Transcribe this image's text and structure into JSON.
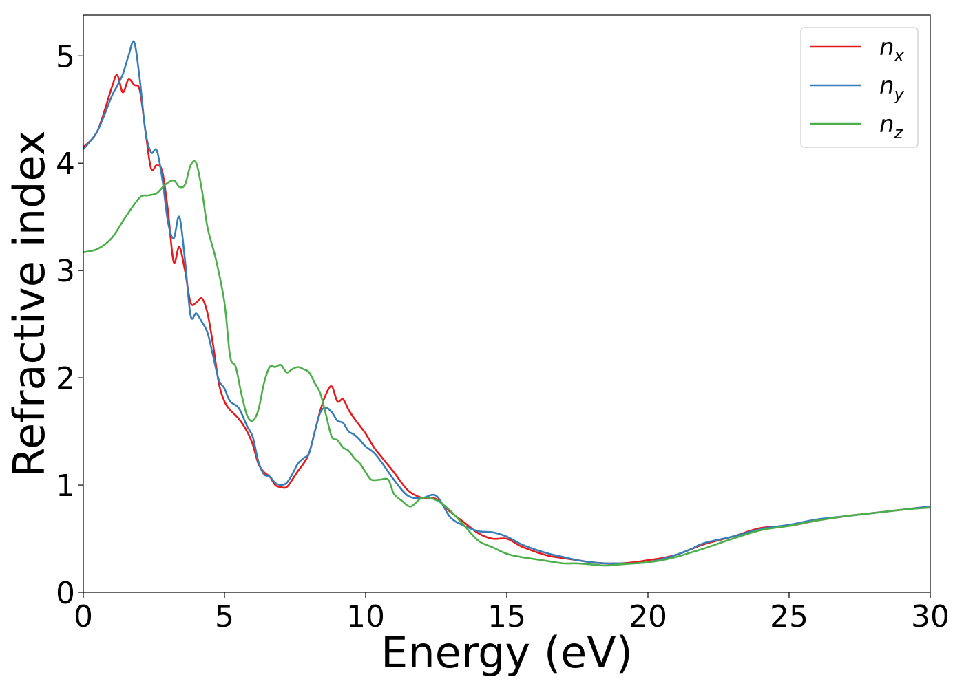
{
  "chart_data": {
    "type": "line",
    "xlabel": "Energy (eV)",
    "ylabel": "Refractive index",
    "xlim": [
      0,
      30
    ],
    "ylim": [
      0,
      5.38
    ],
    "xticks": [
      0,
      5,
      10,
      15,
      20,
      25,
      30
    ],
    "yticks": [
      0,
      1,
      2,
      3,
      4,
      5
    ],
    "grid": false,
    "legend_position": "top-right",
    "series": [
      {
        "name": "n",
        "subscript": "x",
        "color": "#e41a1c",
        "x": [
          0,
          0.5,
          1.0,
          1.2,
          1.4,
          1.6,
          1.8,
          2.0,
          2.2,
          2.4,
          2.6,
          2.8,
          3.0,
          3.2,
          3.4,
          3.6,
          3.8,
          4.0,
          4.2,
          4.4,
          4.6,
          4.8,
          5.0,
          5.2,
          5.5,
          5.8,
          6.0,
          6.2,
          6.4,
          6.6,
          6.8,
          7.0,
          7.2,
          7.4,
          7.6,
          7.8,
          8.0,
          8.2,
          8.4,
          8.6,
          8.8,
          9.0,
          9.2,
          9.4,
          9.6,
          9.8,
          10.0,
          10.3,
          10.6,
          11.0,
          11.5,
          12.0,
          12.5,
          13.0,
          13.5,
          14.0,
          14.5,
          15.0,
          15.5,
          16.0,
          16.5,
          17.0,
          17.5,
          18.0,
          18.5,
          19.0,
          19.5,
          20.0,
          20.5,
          21.0,
          21.5,
          22.0,
          23.0,
          24.0,
          25.0,
          26.0,
          27.0,
          28.0,
          29.0,
          30.0
        ],
        "y": [
          4.15,
          4.3,
          4.7,
          4.82,
          4.66,
          4.78,
          4.73,
          4.68,
          4.3,
          3.95,
          3.98,
          3.92,
          3.55,
          3.08,
          3.22,
          3.0,
          2.7,
          2.7,
          2.74,
          2.6,
          2.3,
          1.95,
          1.78,
          1.7,
          1.62,
          1.5,
          1.38,
          1.2,
          1.12,
          1.08,
          1.0,
          0.98,
          0.98,
          1.05,
          1.13,
          1.2,
          1.3,
          1.5,
          1.7,
          1.85,
          1.92,
          1.78,
          1.8,
          1.7,
          1.62,
          1.55,
          1.48,
          1.35,
          1.25,
          1.12,
          0.95,
          0.88,
          0.87,
          0.75,
          0.65,
          0.55,
          0.5,
          0.5,
          0.43,
          0.38,
          0.34,
          0.32,
          0.3,
          0.28,
          0.27,
          0.27,
          0.28,
          0.3,
          0.32,
          0.35,
          0.4,
          0.45,
          0.52,
          0.6,
          0.62,
          0.67,
          0.71,
          0.74,
          0.77,
          0.8
        ]
      },
      {
        "name": "n",
        "subscript": "y",
        "color": "#377eb8",
        "x": [
          0,
          0.5,
          1.0,
          1.2,
          1.4,
          1.6,
          1.8,
          2.0,
          2.2,
          2.4,
          2.6,
          2.8,
          3.0,
          3.2,
          3.4,
          3.6,
          3.8,
          4.0,
          4.2,
          4.4,
          4.6,
          4.8,
          5.0,
          5.2,
          5.5,
          5.8,
          6.0,
          6.2,
          6.4,
          6.6,
          6.8,
          7.0,
          7.2,
          7.4,
          7.6,
          7.8,
          8.0,
          8.2,
          8.4,
          8.6,
          8.8,
          9.0,
          9.2,
          9.4,
          9.6,
          9.8,
          10.0,
          10.3,
          10.6,
          11.0,
          11.5,
          12.0,
          12.5,
          13.0,
          13.5,
          14.0,
          14.5,
          15.0,
          15.5,
          16.0,
          16.5,
          17.0,
          17.5,
          18.0,
          18.5,
          19.0,
          19.5,
          20.0,
          20.5,
          21.0,
          21.5,
          22.0,
          23.0,
          24.0,
          25.0,
          26.0,
          27.0,
          28.0,
          29.0,
          30.0
        ],
        "y": [
          4.13,
          4.3,
          4.62,
          4.72,
          4.83,
          5.0,
          5.13,
          4.78,
          4.3,
          4.1,
          4.12,
          3.85,
          3.45,
          3.3,
          3.5,
          3.1,
          2.58,
          2.6,
          2.52,
          2.42,
          2.2,
          1.98,
          1.9,
          1.78,
          1.72,
          1.55,
          1.45,
          1.22,
          1.1,
          1.08,
          1.02,
          1.0,
          1.02,
          1.1,
          1.2,
          1.25,
          1.3,
          1.5,
          1.68,
          1.72,
          1.68,
          1.6,
          1.58,
          1.5,
          1.47,
          1.42,
          1.36,
          1.3,
          1.2,
          1.05,
          0.9,
          0.88,
          0.9,
          0.7,
          0.62,
          0.57,
          0.56,
          0.52,
          0.45,
          0.4,
          0.36,
          0.33,
          0.3,
          0.28,
          0.27,
          0.27,
          0.27,
          0.28,
          0.31,
          0.35,
          0.4,
          0.46,
          0.52,
          0.59,
          0.63,
          0.68,
          0.71,
          0.74,
          0.77,
          0.8
        ]
      },
      {
        "name": "n",
        "subscript": "z",
        "color": "#4daf4a",
        "x": [
          0,
          0.5,
          1.0,
          1.5,
          2.0,
          2.3,
          2.6,
          2.9,
          3.2,
          3.4,
          3.6,
          3.8,
          4.0,
          4.2,
          4.4,
          4.7,
          5.0,
          5.2,
          5.4,
          5.6,
          5.8,
          6.0,
          6.2,
          6.4,
          6.6,
          6.8,
          7.0,
          7.2,
          7.4,
          7.6,
          7.8,
          8.0,
          8.2,
          8.4,
          8.6,
          8.8,
          9.0,
          9.2,
          9.4,
          9.6,
          9.8,
          10.0,
          10.2,
          10.5,
          10.8,
          11.0,
          11.3,
          11.6,
          12.0,
          12.5,
          13.0,
          13.5,
          14.0,
          14.5,
          15.0,
          15.5,
          16.0,
          16.5,
          17.0,
          17.5,
          18.0,
          18.5,
          19.0,
          19.5,
          20.0,
          20.5,
          21.0,
          21.5,
          22.0,
          23.0,
          24.0,
          25.0,
          26.0,
          27.0,
          28.0,
          29.0,
          30.0
        ],
        "y": [
          3.17,
          3.2,
          3.3,
          3.5,
          3.68,
          3.7,
          3.72,
          3.8,
          3.84,
          3.78,
          3.8,
          3.98,
          4.0,
          3.75,
          3.4,
          3.1,
          2.7,
          2.2,
          2.1,
          1.85,
          1.65,
          1.6,
          1.7,
          1.95,
          2.1,
          2.1,
          2.12,
          2.05,
          2.08,
          2.1,
          2.08,
          2.05,
          1.95,
          1.85,
          1.65,
          1.45,
          1.42,
          1.35,
          1.32,
          1.25,
          1.2,
          1.12,
          1.05,
          1.05,
          1.05,
          0.92,
          0.85,
          0.8,
          0.88,
          0.86,
          0.76,
          0.62,
          0.48,
          0.42,
          0.36,
          0.33,
          0.31,
          0.29,
          0.27,
          0.27,
          0.26,
          0.25,
          0.26,
          0.27,
          0.28,
          0.3,
          0.33,
          0.37,
          0.41,
          0.5,
          0.58,
          0.62,
          0.67,
          0.71,
          0.74,
          0.77,
          0.79
        ]
      }
    ]
  }
}
